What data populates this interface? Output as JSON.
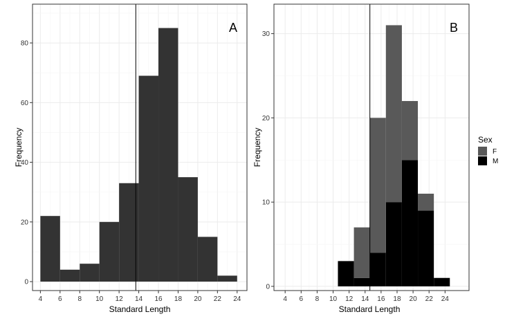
{
  "chart_data": [
    {
      "type": "bar",
      "panel_label": "A",
      "xlabel": "Standard Length",
      "ylabel": "Frequency",
      "xlim": [
        3.2,
        25
      ],
      "ylim": [
        -3,
        93
      ],
      "xticks": [
        4,
        6,
        8,
        10,
        12,
        14,
        16,
        18,
        20,
        22,
        24
      ],
      "yticks": [
        0,
        20,
        40,
        60,
        80
      ],
      "bin_edges": [
        4,
        6,
        8,
        10,
        12,
        14,
        16,
        18,
        20,
        22,
        24
      ],
      "series": [
        {
          "values": [
            22,
            4,
            6,
            20,
            33,
            69,
            85,
            35,
            15,
            2
          ],
          "color": "#333333"
        }
      ],
      "reference_line_x": 13.7,
      "grid": true
    },
    {
      "type": "bar",
      "stacked": true,
      "panel_label": "B",
      "xlabel": "Standard Length",
      "ylabel": "Frequency",
      "xlim": [
        2.6,
        27
      ],
      "ylim": [
        -0.5,
        33.5
      ],
      "xticks": [
        4,
        6,
        8,
        10,
        12,
        14,
        16,
        18,
        20,
        22,
        24
      ],
      "yticks": [
        0,
        10,
        20,
        30
      ],
      "bin_edges": [
        10.6,
        12.6,
        14.6,
        16.6,
        18.6,
        20.6,
        22.6,
        24.6
      ],
      "series": [
        {
          "name": "F",
          "values": [
            0,
            6,
            16,
            21,
            7,
            2,
            0
          ],
          "color": "#595959"
        },
        {
          "name": "M",
          "values": [
            3,
            1,
            4,
            10,
            15,
            9,
            1
          ],
          "color": "#000000"
        }
      ],
      "reference_line_x": 14.6,
      "grid": true
    }
  ],
  "legend": {
    "title": "Sex",
    "items": [
      {
        "label": "F",
        "color": "#595959"
      },
      {
        "label": "M",
        "color": "#000000"
      }
    ],
    "placement": "right"
  }
}
